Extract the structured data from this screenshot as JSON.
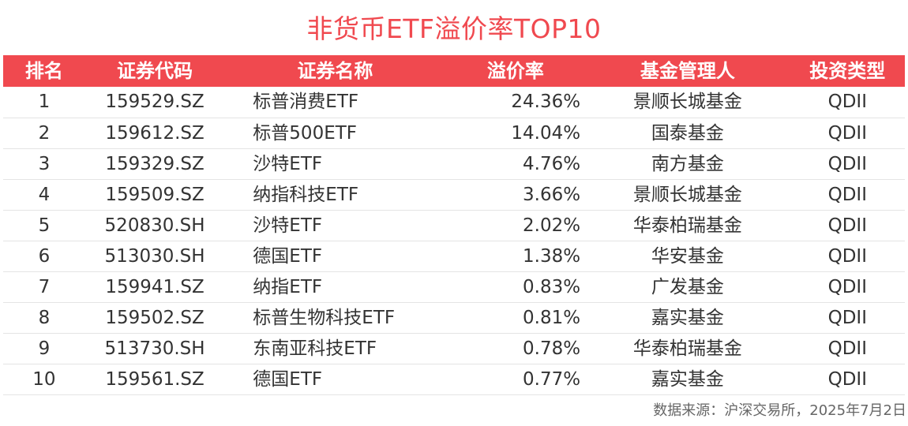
{
  "title": "非货币ETF溢价率TOP10",
  "header": {
    "rank": "排名",
    "code": "证券代码",
    "name": "证券名称",
    "premium": "溢价率",
    "manager": "基金管理人",
    "type": "投资类型"
  },
  "rows": [
    {
      "rank": "1",
      "code": "159529.SZ",
      "name": "标普消费ETF",
      "premium": "24.36%",
      "manager": "景顺长城基金",
      "type": "QDII"
    },
    {
      "rank": "2",
      "code": "159612.SZ",
      "name": "标普500ETF",
      "premium": "14.04%",
      "manager": "国泰基金",
      "type": "QDII"
    },
    {
      "rank": "3",
      "code": "159329.SZ",
      "name": "沙特ETF",
      "premium": "4.76%",
      "manager": "南方基金",
      "type": "QDII"
    },
    {
      "rank": "4",
      "code": "159509.SZ",
      "name": "纳指科技ETF",
      "premium": "3.66%",
      "manager": "景顺长城基金",
      "type": "QDII"
    },
    {
      "rank": "5",
      "code": "520830.SH",
      "name": "沙特ETF",
      "premium": "2.02%",
      "manager": "华泰柏瑞基金",
      "type": "QDII"
    },
    {
      "rank": "6",
      "code": "513030.SH",
      "name": "德国ETF",
      "premium": "1.38%",
      "manager": "华安基金",
      "type": "QDII"
    },
    {
      "rank": "7",
      "code": "159941.SZ",
      "name": "纳指ETF",
      "premium": "0.83%",
      "manager": "广发基金",
      "type": "QDII"
    },
    {
      "rank": "8",
      "code": "159502.SZ",
      "name": "标普生物科技ETF",
      "premium": "0.81%",
      "manager": "嘉实基金",
      "type": "QDII"
    },
    {
      "rank": "9",
      "code": "513730.SH",
      "name": "东南亚科技ETF",
      "premium": "0.78%",
      "manager": "华泰柏瑞基金",
      "type": "QDII"
    },
    {
      "rank": "10",
      "code": "159561.SZ",
      "name": "德国ETF",
      "premium": "0.77%",
      "manager": "嘉实基金",
      "type": "QDII"
    }
  ],
  "source": "数据来源：沪深交易所，2025年7月2日",
  "colors": {
    "accent": "#f0494f",
    "header_text": "#ffffff",
    "body_text": "#333333",
    "row_divider": "#e4e4e4"
  }
}
